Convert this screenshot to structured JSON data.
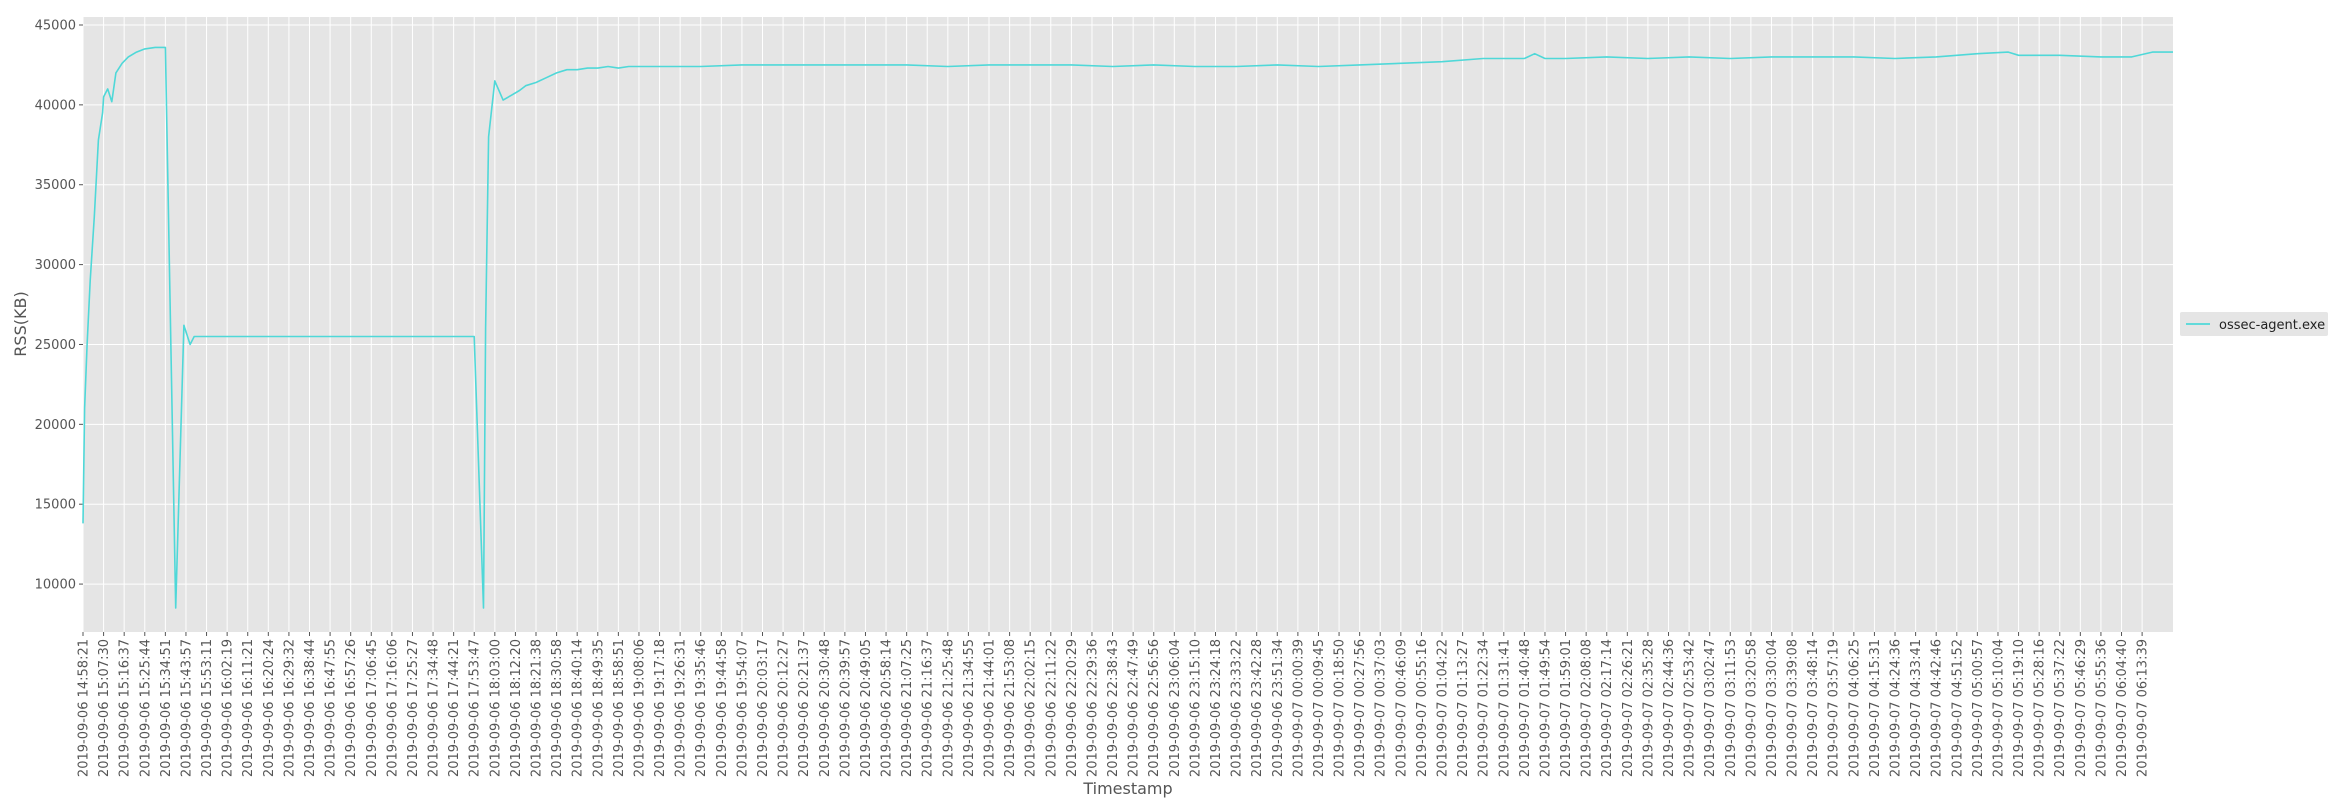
{
  "chart_data": {
    "type": "line",
    "title": "",
    "xlabel": "Timestamp",
    "ylabel": "RSS(KB)",
    "ylim": [
      7000,
      45500
    ],
    "yticks": [
      10000,
      15000,
      20000,
      25000,
      30000,
      35000,
      40000,
      45000
    ],
    "grid": true,
    "legend_position": "right",
    "colors": {
      "series": "#4fd8d8",
      "plot_bg": "#e5e5e5",
      "grid": "#ffffff",
      "text": "#555555"
    },
    "x_tick_labels": [
      "2019-09-06 14:58:21",
      "2019-09-06 15:07:30",
      "2019-09-06 15:16:37",
      "2019-09-06 15:25:44",
      "2019-09-06 15:34:51",
      "2019-09-06 15:43:57",
      "2019-09-06 15:53:11",
      "2019-09-06 16:02:19",
      "2019-09-06 16:11:21",
      "2019-09-06 16:20:24",
      "2019-09-06 16:29:32",
      "2019-09-06 16:38:44",
      "2019-09-06 16:47:55",
      "2019-09-06 16:57:26",
      "2019-09-06 17:06:45",
      "2019-09-06 17:16:06",
      "2019-09-06 17:25:27",
      "2019-09-06 17:34:48",
      "2019-09-06 17:44:21",
      "2019-09-06 17:53:47",
      "2019-09-06 18:03:00",
      "2019-09-06 18:12:20",
      "2019-09-06 18:21:38",
      "2019-09-06 18:30:58",
      "2019-09-06 18:40:14",
      "2019-09-06 18:49:35",
      "2019-09-06 18:58:51",
      "2019-09-06 19:08:06",
      "2019-09-06 19:17:18",
      "2019-09-06 19:26:31",
      "2019-09-06 19:35:46",
      "2019-09-06 19:44:58",
      "2019-09-06 19:54:07",
      "2019-09-06 20:03:17",
      "2019-09-06 20:12:27",
      "2019-09-06 20:21:37",
      "2019-09-06 20:30:48",
      "2019-09-06 20:39:57",
      "2019-09-06 20:49:05",
      "2019-09-06 20:58:14",
      "2019-09-06 21:07:25",
      "2019-09-06 21:16:37",
      "2019-09-06 21:25:48",
      "2019-09-06 21:34:55",
      "2019-09-06 21:44:01",
      "2019-09-06 21:53:08",
      "2019-09-06 22:02:15",
      "2019-09-06 22:11:22",
      "2019-09-06 22:20:29",
      "2019-09-06 22:29:36",
      "2019-09-06 22:38:43",
      "2019-09-06 22:47:49",
      "2019-09-06 22:56:56",
      "2019-09-06 23:06:04",
      "2019-09-06 23:15:10",
      "2019-09-06 23:24:18",
      "2019-09-06 23:33:22",
      "2019-09-06 23:42:28",
      "2019-09-06 23:51:34",
      "2019-09-07 00:00:39",
      "2019-09-07 00:09:45",
      "2019-09-07 00:18:50",
      "2019-09-07 00:27:56",
      "2019-09-07 00:37:03",
      "2019-09-07 00:46:09",
      "2019-09-07 00:55:16",
      "2019-09-07 01:04:22",
      "2019-09-07 01:13:27",
      "2019-09-07 01:22:34",
      "2019-09-07 01:31:41",
      "2019-09-07 01:40:48",
      "2019-09-07 01:49:54",
      "2019-09-07 01:59:01",
      "2019-09-07 02:08:08",
      "2019-09-07 02:17:14",
      "2019-09-07 02:26:21",
      "2019-09-07 02:35:28",
      "2019-09-07 02:44:36",
      "2019-09-07 02:53:42",
      "2019-09-07 03:02:47",
      "2019-09-07 03:11:53",
      "2019-09-07 03:20:58",
      "2019-09-07 03:30:04",
      "2019-09-07 03:39:08",
      "2019-09-07 03:48:14",
      "2019-09-07 03:57:19",
      "2019-09-07 04:06:25",
      "2019-09-07 04:15:31",
      "2019-09-07 04:24:36",
      "2019-09-07 04:33:41",
      "2019-09-07 04:42:46",
      "2019-09-07 04:51:52",
      "2019-09-07 05:00:57",
      "2019-09-07 05:10:04",
      "2019-09-07 05:19:10",
      "2019-09-07 05:28:16",
      "2019-09-07 05:37:22",
      "2019-09-07 05:46:29",
      "2019-09-07 05:55:36",
      "2019-09-07 06:04:40",
      "2019-09-07 06:13:39"
    ],
    "x_range": [
      0,
      101.5
    ],
    "series": [
      {
        "name": "ossec-agent.exe",
        "x": [
          0,
          0.08,
          0.2,
          0.35,
          0.55,
          0.75,
          0.95,
          1.0,
          1.2,
          1.4,
          1.6,
          1.9,
          2.2,
          2.6,
          3.0,
          3.5,
          4.0,
          4.5,
          4.9,
          5.2,
          5.4,
          5.6,
          5.9,
          6.3,
          6.6,
          6.8,
          7.0,
          7.2,
          7.5,
          8.0,
          8.5,
          10.0,
          12.0,
          14.0,
          16.0,
          18.0,
          19.0,
          19.45,
          19.55,
          19.7,
          20.0,
          20.4,
          20.8,
          21.2,
          21.5,
          22.0,
          22.5,
          23.0,
          23.5,
          24.0,
          24.5,
          25.0,
          25.5,
          26.0,
          26.5,
          27.0,
          28.0,
          30.0,
          32.0,
          34.0,
          36.0,
          38.0,
          40.0,
          42.0,
          44.0,
          46.0,
          48.0,
          50.0,
          52.0,
          54.0,
          56.0,
          58.0,
          60.0,
          62.0,
          64.0,
          66.0,
          68.0,
          70.0,
          70.5,
          71.0,
          72.0,
          74.0,
          76.0,
          78.0,
          80.0,
          82.0,
          84.0,
          86.0,
          88.0,
          90.0,
          92.0,
          93.5,
          94.0,
          96.0,
          98.0,
          99.5,
          100.5,
          101.5
        ],
        "y": [
          13800,
          21000,
          25000,
          29000,
          33000,
          37800,
          39500,
          40500,
          41000,
          40200,
          42000,
          42600,
          43000,
          43300,
          43500,
          43600,
          43600,
          8500,
          26200,
          25000,
          25500,
          25500,
          25500,
          25500,
          25500,
          25500,
          25500,
          25500,
          25500,
          25500,
          25500,
          25500,
          25500,
          25500,
          25500,
          25500,
          25500,
          8500,
          26000,
          38000,
          41500,
          40300,
          40600,
          40900,
          41200,
          41400,
          41700,
          42000,
          42200,
          42200,
          42300,
          42300,
          42400,
          42300,
          42400,
          42400,
          42400,
          42400,
          42500,
          42500,
          42500,
          42500,
          42500,
          42400,
          42500,
          42500,
          42500,
          42400,
          42500,
          42400,
          42400,
          42500,
          42400,
          42500,
          42600,
          42700,
          42900,
          42900,
          43200,
          42900,
          42900,
          43000,
          42900,
          43000,
          42900,
          43000,
          43000,
          43000,
          42900,
          43000,
          43200,
          43300,
          43100,
          43100,
          43000,
          43000,
          43300,
          43300
        ]
      }
    ]
  }
}
